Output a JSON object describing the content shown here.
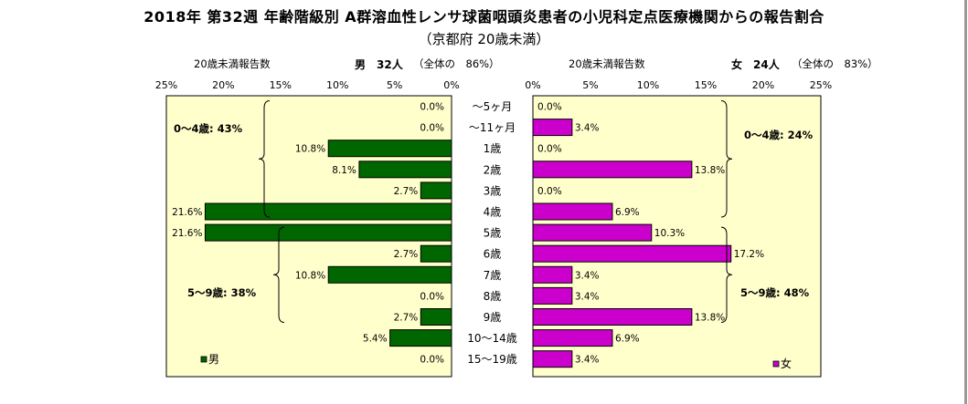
{
  "header": {
    "title": "2018年 第32週 年齢階級別 A群溶血性レンサ球菌咽頭炎患者の小児科定点医療機関からの報告割合",
    "subtitle": "（京都府 20歳未満）"
  },
  "male_caption": {
    "label": "20歳未満報告数",
    "sex": "男",
    "count": "32人",
    "share": "（全体の　86%）"
  },
  "female_caption": {
    "label": "20歳未満報告数",
    "sex": "女",
    "count": "24人",
    "share": "（全体の　83%）"
  },
  "chart_data": {
    "type": "bar",
    "orientation": "horizontal-butterfly",
    "categories": [
      "～5ヶ月",
      "～11ヶ月",
      "1歳",
      "2歳",
      "3歳",
      "4歳",
      "5歳",
      "6歳",
      "7歳",
      "8歳",
      "9歳",
      "10～14歳",
      "15～19歳"
    ],
    "series": [
      {
        "name": "男",
        "color": "#006600",
        "side": "left",
        "values": [
          0.0,
          0.0,
          10.8,
          8.1,
          2.7,
          21.6,
          21.6,
          2.7,
          10.8,
          0.0,
          2.7,
          5.4,
          0.0
        ],
        "labels": [
          "0.0%",
          "0.0%",
          "10.8%",
          "8.1%",
          "2.7%",
          "21.6%",
          "21.6%",
          "2.7%",
          "10.8%",
          "0.0%",
          "2.7%",
          "5.4%",
          "0.0%"
        ]
      },
      {
        "name": "女",
        "color": "#cc00cc",
        "side": "right",
        "values": [
          0.0,
          3.4,
          0.0,
          13.8,
          0.0,
          6.9,
          10.3,
          17.2,
          3.4,
          3.4,
          13.8,
          6.9,
          3.4
        ],
        "labels": [
          "0.0%",
          "3.4%",
          "0.0%",
          "13.8%",
          "0.0%",
          "6.9%",
          "10.3%",
          "17.2%",
          "3.4%",
          "3.4%",
          "13.8%",
          "6.9%",
          "3.4%"
        ]
      }
    ],
    "xlim": [
      0,
      25
    ],
    "ticks": [
      "25%",
      "20%",
      "15%",
      "10%",
      "5%",
      "0%"
    ],
    "ticks_right": [
      "0%",
      "5%",
      "10%",
      "15%",
      "20%",
      "25%"
    ],
    "background": "#ffffcc",
    "grid": false,
    "legend_male": "男",
    "legend_female": "女",
    "annotations": {
      "male_0_4": "0～4歳: 43%",
      "male_5_9": "5～9歳: 38%",
      "female_0_4": "0～4歳: 24%",
      "female_5_9": "5～9歳: 48%"
    }
  }
}
